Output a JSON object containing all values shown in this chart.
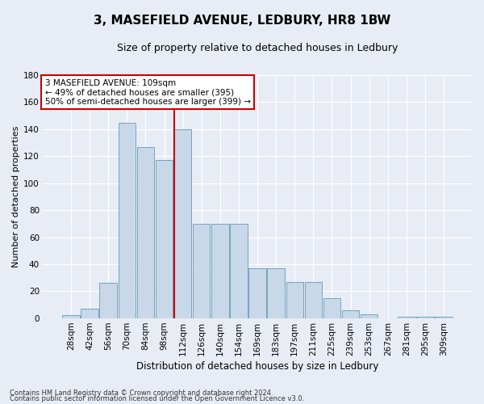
{
  "title": "3, MASEFIELD AVENUE, LEDBURY, HR8 1BW",
  "subtitle": "Size of property relative to detached houses in Ledbury",
  "xlabel": "Distribution of detached houses by size in Ledbury",
  "ylabel": "Number of detached properties",
  "footer_line1": "Contains HM Land Registry data © Crown copyright and database right 2024.",
  "footer_line2": "Contains public sector information licensed under the Open Government Licence v3.0.",
  "bar_labels": [
    "28sqm",
    "42sqm",
    "56sqm",
    "70sqm",
    "84sqm",
    "98sqm",
    "112sqm",
    "126sqm",
    "140sqm",
    "154sqm",
    "169sqm",
    "183sqm",
    "197sqm",
    "211sqm",
    "225sqm",
    "239sqm",
    "253sqm",
    "267sqm",
    "281sqm",
    "295sqm",
    "309sqm"
  ],
  "bar_values": [
    2,
    7,
    26,
    145,
    127,
    117,
    140,
    70,
    70,
    70,
    37,
    37,
    27,
    27,
    15,
    6,
    3,
    0,
    1,
    1,
    1
  ],
  "bar_color": "#c8d8e8",
  "bar_edge_color": "#6699bb",
  "vline_color": "#cc0000",
  "vline_x": 6.0,
  "annotation_title": "3 MASEFIELD AVENUE: 109sqm",
  "annotation_line1": "← 49% of detached houses are smaller (395)",
  "annotation_line2": "50% of semi-detached houses are larger (399) →",
  "ylim": [
    0,
    180
  ],
  "yticks": [
    0,
    20,
    40,
    60,
    80,
    100,
    120,
    140,
    160,
    180
  ],
  "bg_color": "#e8edf5",
  "grid_color": "white",
  "title_fontsize": 11,
  "subtitle_fontsize": 9,
  "ylabel_fontsize": 8,
  "xlabel_fontsize": 8.5,
  "tick_fontsize": 7.5,
  "footer_fontsize": 6
}
